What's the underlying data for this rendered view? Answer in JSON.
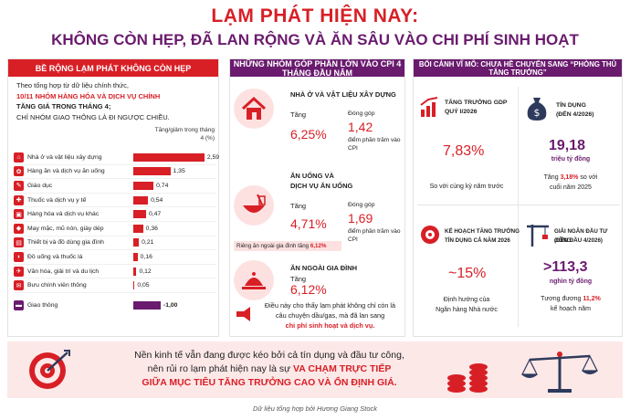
{
  "header": {
    "title": "LẠM PHÁT HIỆN NAY:",
    "subtitle": "KHÔNG CÒN HẸP, ĐÃ LAN RỘNG VÀ ĂN SÂU VÀO CHI PHÍ SINH HOẠT"
  },
  "left": {
    "heading": "BỀ RỘNG LẠM PHÁT KHÔNG CÒN HẸP",
    "intro1": "Theo tổng hợp từ dữ liệu chính thức,",
    "intro2": "10/11 NHÓM HÀNG HÓA VÀ DỊCH VỤ CHÍNH",
    "intro3": "TĂNG GIÁ TRONG THÁNG 4;",
    "intro4": "CHỈ NHÓM GIAO THÔNG LÀ ĐI NGƯỢC CHIỀU.",
    "col_header": "Tăng/giảm trong tháng 4 (%)",
    "max_value": 2.59,
    "items": [
      {
        "label": "Nhà ở và vật liệu xây dựng",
        "value": 2.59,
        "display": "2,59",
        "icon": "house-icon",
        "glyph": "⌂"
      },
      {
        "label": "Hàng ăn và dịch vụ ăn uống",
        "value": 1.35,
        "display": "1,35",
        "icon": "food-icon",
        "glyph": "✿"
      },
      {
        "label": "Giáo dục",
        "value": 0.74,
        "display": "0,74",
        "icon": "education-icon",
        "glyph": "✎"
      },
      {
        "label": "Thuốc và dịch vụ y tế",
        "value": 0.54,
        "display": "0,54",
        "icon": "medicine-icon",
        "glyph": "✚"
      },
      {
        "label": "Hàng hóa và dịch vụ khác",
        "value": 0.47,
        "display": "0,47",
        "icon": "goods-icon",
        "glyph": "▣"
      },
      {
        "label": "May mặc, mũ nón, giày dép",
        "value": 0.36,
        "display": "0,36",
        "icon": "clothing-icon",
        "glyph": "◆"
      },
      {
        "label": "Thiết bị và đồ dùng gia đình",
        "value": 0.21,
        "display": "0,21",
        "icon": "appliance-icon",
        "glyph": "▤"
      },
      {
        "label": "Đồ uống và thuốc lá",
        "value": 0.16,
        "display": "0,16",
        "icon": "drink-icon",
        "glyph": "◗"
      },
      {
        "label": "Văn hóa, giải trí và du lịch",
        "value": 0.12,
        "display": "0,12",
        "icon": "travel-icon",
        "glyph": "✈"
      },
      {
        "label": "Bưu chính viễn thông",
        "value": 0.05,
        "display": "0,05",
        "icon": "telecom-icon",
        "glyph": "✉"
      }
    ],
    "transport": {
      "label": "Giao thông",
      "value": -1.0,
      "display": "-1,00",
      "icon": "car-icon",
      "glyph": "▬"
    }
  },
  "mid": {
    "heading": "NHỮNG NHÓM GÓP PHẦN LỚN VÀO CPI 4 THÁNG ĐẦU NĂM",
    "g1": {
      "title": "NHÀ Ở VÀ VẬT LIỆU XÂY DỰNG",
      "inc_label": "Tăng",
      "inc": "6,25%",
      "contr_label": "Đóng góp",
      "contr": "1,42",
      "unit": "điểm phần trăm vào CPI"
    },
    "g2": {
      "title1": "ĂN UỐNG VÀ",
      "title2": "DỊCH VỤ ĂN UỐNG",
      "inc_label": "Tăng",
      "inc": "4,71%",
      "contr_label": "Đóng góp",
      "contr": "1,69",
      "unit": "điểm phần trăm vào CPI"
    },
    "note_text": "Riêng ăn ngoài gia đình tăng",
    "note_val": "6,12%",
    "g3": {
      "title": "ĂN NGOÀI GIA ĐÌNH",
      "inc_label": "Tăng",
      "inc": "6,12%"
    },
    "concl1": "Điều này cho thấy lạm phát không chỉ còn là",
    "concl2": "câu chuyện dầu/gas, mà đã lan sang",
    "concl3": "chi phí sinh hoạt và dịch vụ."
  },
  "right": {
    "heading": "BỐI CẢNH VĨ MÔ: CHƯA HỀ CHUYỂN SANG “PHÒNG THỦ TĂNG TRƯỞNG”",
    "c1": {
      "label1": "TĂNG TRƯỞNG GDP",
      "label2": "QUÝ I/2026",
      "value": "7,83%",
      "note": "So với cùng kỳ năm trước"
    },
    "c2": {
      "label1": "TÍN DỤNG",
      "label2": "(ĐẾN 4/2026)",
      "value": "19,18",
      "unit": "triệu tỷ đồng",
      "note1": "Tăng",
      "note_val": "3,18%",
      "note2": "so với",
      "note3": "cuối năm 2025"
    },
    "c3": {
      "label1": "KẾ HOẠCH TĂNG TRƯỞNG",
      "label2": "TÍN DỤNG CẢ NĂM 2026",
      "value": "~15%",
      "note1": "Định hướng của",
      "note2": "Ngân hàng Nhà nước"
    },
    "c4": {
      "label1": "GIẢI NGÂN ĐẦU TƯ CÔNG",
      "label2": "(ĐẾN ĐẦU 4/2026)",
      "value": ">113,3",
      "unit": "nghìn tỷ đồng",
      "note1": "Tương đương",
      "note_val": "11,2%",
      "note2": "kế hoạch năm"
    }
  },
  "bottom": {
    "line1": "Nền kinh tế vẫn đang được kéo bởi cả tín dụng và đầu tư công,",
    "line2a": "nên rủi ro lạm phát hiện nay là sự",
    "line2b": "VA CHẠM TRỰC TIẾP",
    "line3": "GIỮA MỤC TIÊU TĂNG TRƯỞNG CAO VÀ ỔN ĐỊNH GIÁ."
  },
  "source": "Dữ liệu tổng hợp bởi Hương Giang Stock",
  "colors": {
    "red": "#d81f26",
    "purple": "#6a1b6e",
    "pink": "#fde1e1"
  }
}
